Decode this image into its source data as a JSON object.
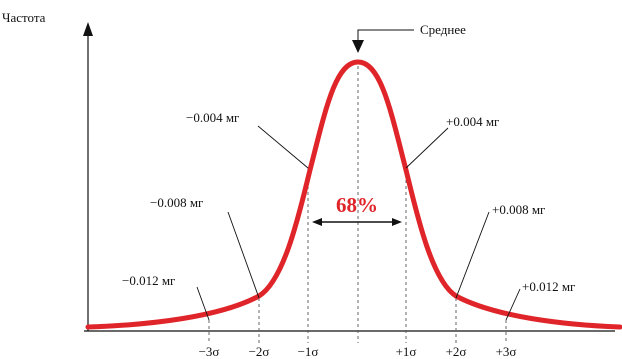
{
  "y_axis_label": "Частота",
  "mean_label": "Среднее",
  "center_percent": "68%",
  "colors": {
    "curve": "#e0252a",
    "percent": "#e0252a",
    "ink": "#111111",
    "guide": "#555555"
  },
  "chart_data": {
    "type": "line",
    "title": "",
    "xlabel": "",
    "ylabel": "Частота",
    "series": [
      {
        "x": [
          -5,
          -3,
          -2,
          -1,
          0,
          1,
          2,
          3,
          5
        ]
      }
    ],
    "x_ticks": [
      "−3σ",
      "−2σ",
      "−1σ",
      "+1σ",
      "+2σ",
      "+3σ"
    ],
    "annotations": [
      "−0.012 мг",
      "−0.008 мг",
      "−0.004 мг",
      "+0.004 мг",
      "+0.008 мг",
      "+0.012 мг"
    ],
    "grid": false
  }
}
